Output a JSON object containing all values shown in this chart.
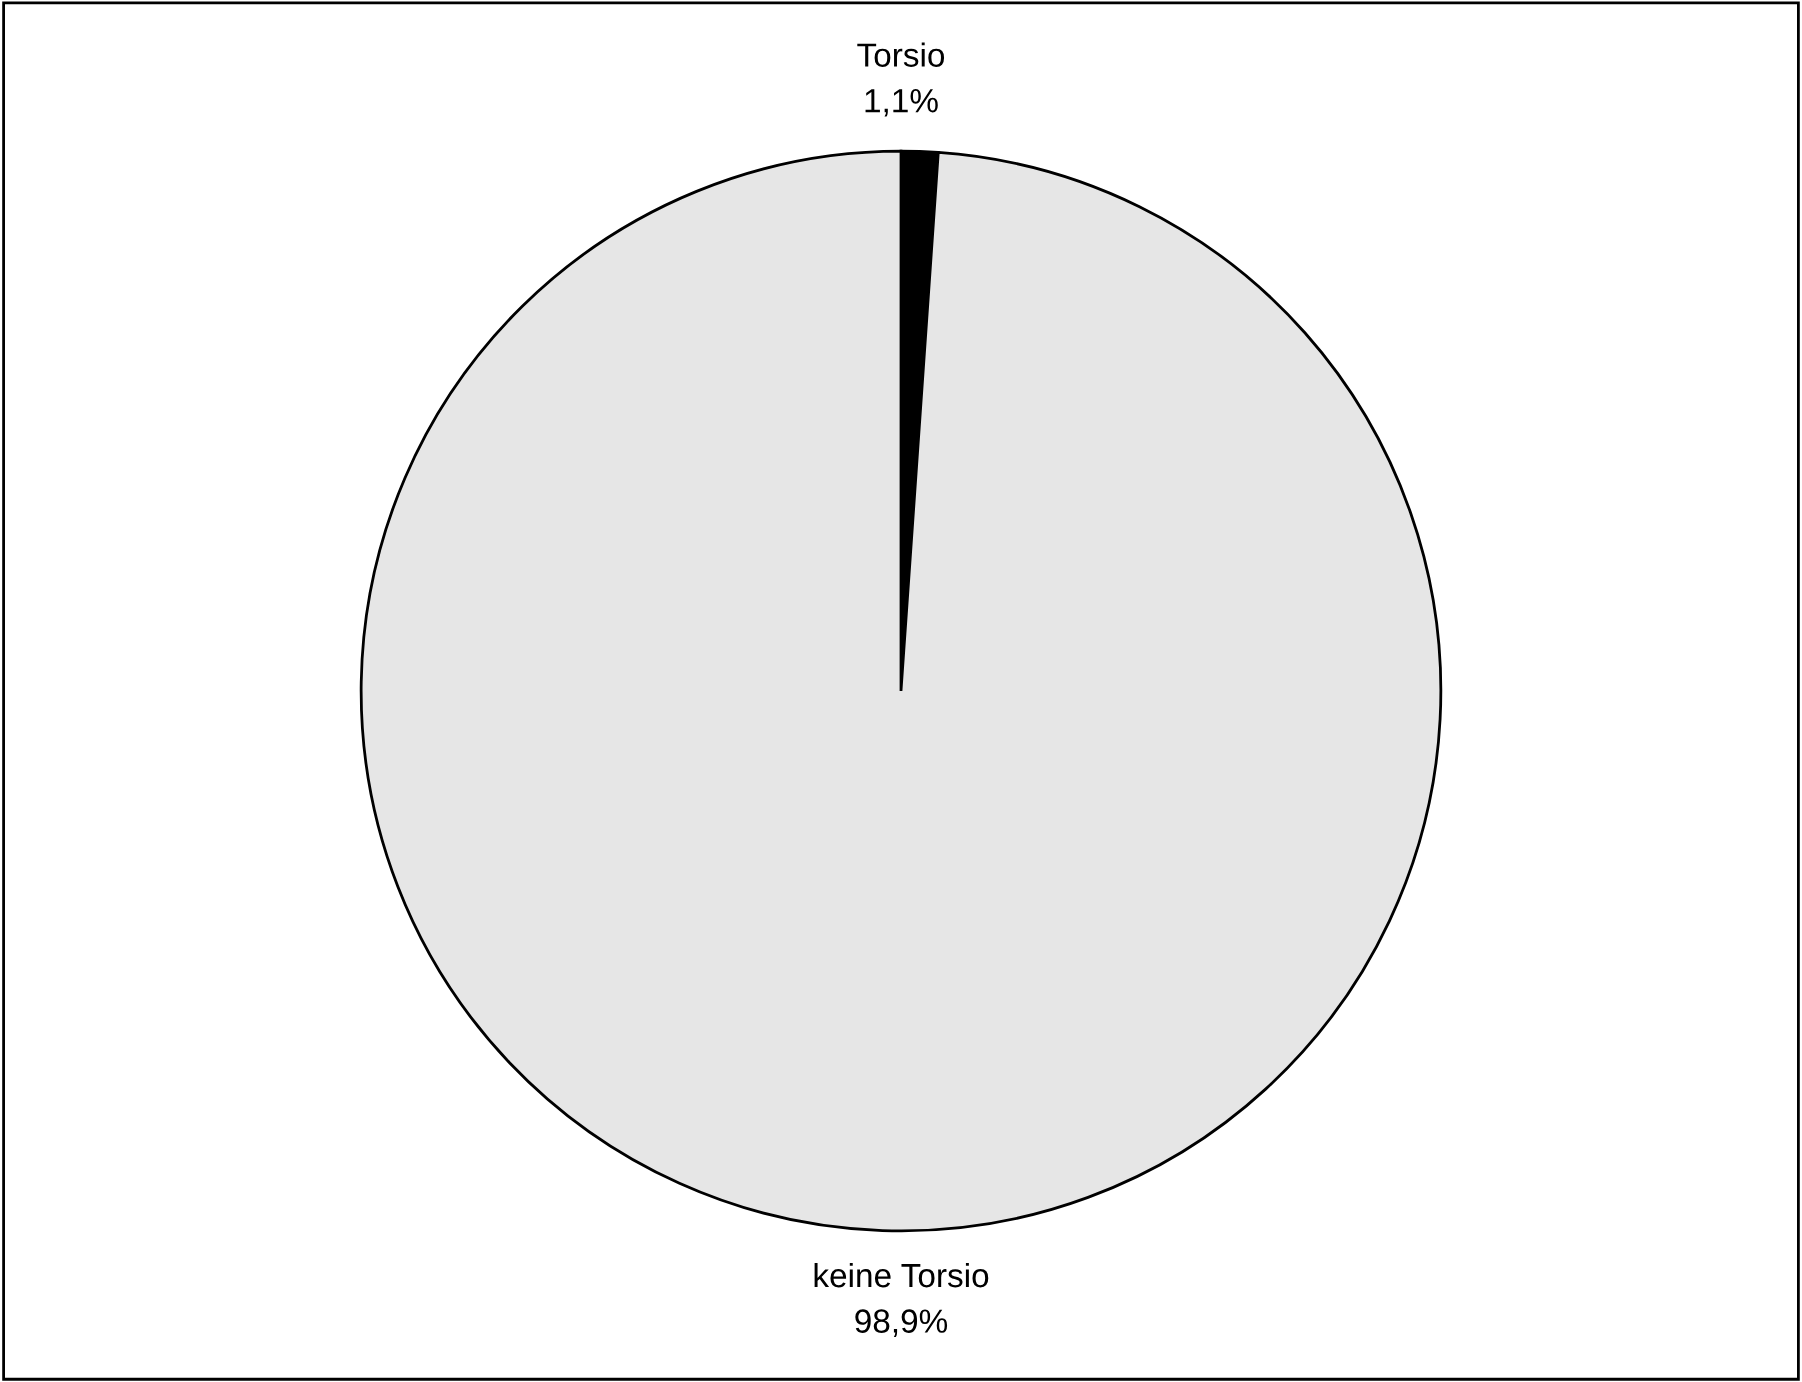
{
  "chart_data": {
    "type": "pie",
    "categories": [
      "Torsio",
      "keine Torsio"
    ],
    "values": [
      1.1,
      98.9
    ],
    "colors": [
      "#000000",
      "#e6e6e6"
    ],
    "value_labels": [
      "1,1%",
      "98,9%"
    ],
    "legend": false
  }
}
